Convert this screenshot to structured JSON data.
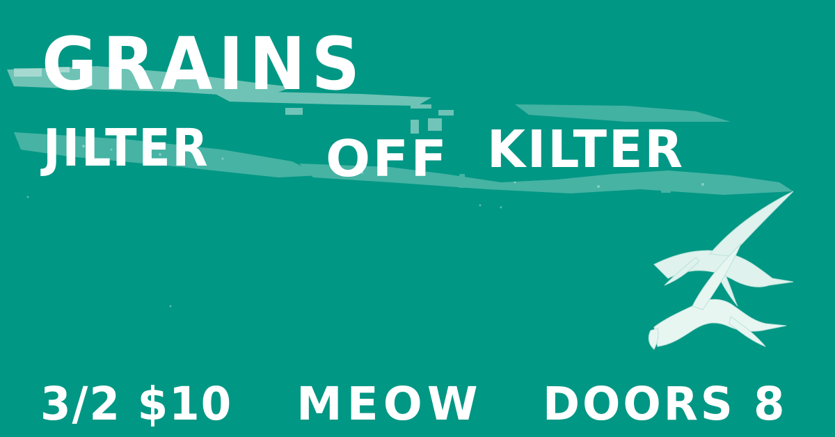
{
  "event": {
    "headliner": "GRAINS",
    "support_word1": "JILTER",
    "support_word2": "OFF",
    "support_word3": "KILTER",
    "date_price": "3/2 $10",
    "venue": "MEOW",
    "doors": "DOORS 8"
  },
  "colors": {
    "background": "#009784",
    "text": "#ffffff",
    "texture": "#c8e7df"
  },
  "artwork": {
    "birds_icon": "flying-terns-icon"
  }
}
